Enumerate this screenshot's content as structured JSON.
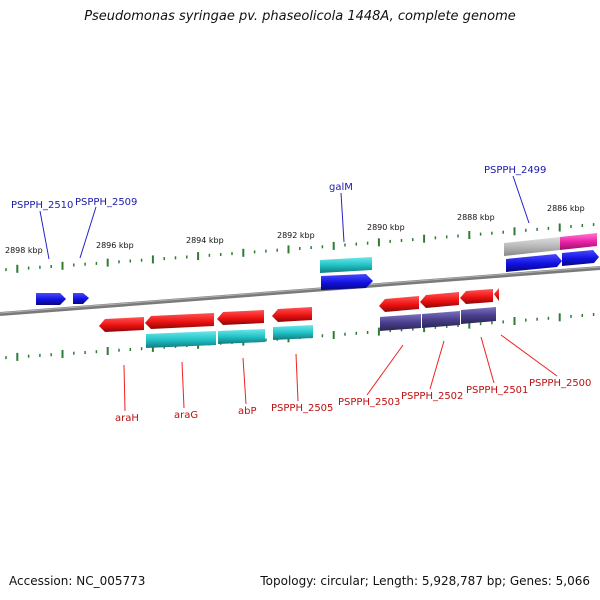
{
  "header": {
    "title": "Pseudomonas syringae pv. phaseolicola 1448A, complete genome"
  },
  "footer": {
    "accession": "Accession: NC_005773",
    "summary": "Topology: circular; Length: 5,928,787 bp; Genes: 5,066"
  },
  "colors": {
    "backbone": "#888888",
    "tick": "#2e7d32",
    "forward_gene": "#1010e0",
    "reverse_gene": "#ee1111",
    "cds_cyan": "#22c4c8",
    "cds_purple": "#4a3f8c",
    "cds_gray": "#b8b8b8",
    "cds_magenta": "#ee22aa",
    "label_blue": "#1a1aaa",
    "label_red": "#bb1111",
    "callout_blue": "#2222cc",
    "callout_red": "#ee2222"
  },
  "scale_labels": [
    "2898 kbp",
    "2896 kbp",
    "2894 kbp",
    "2892 kbp",
    "2890 kbp",
    "2888 kbp",
    "2886 kbp"
  ],
  "gene_labels": {
    "top": [
      "PSPPH_2510",
      "PSPPH_2509",
      "galM",
      "PSPPH_2499"
    ],
    "bottom": [
      "araH",
      "araG",
      "abP",
      "PSPPH_2505",
      "PSPPH_2503",
      "PSPPH_2502",
      "PSPPH_2501",
      "PSPPH_2500"
    ]
  }
}
